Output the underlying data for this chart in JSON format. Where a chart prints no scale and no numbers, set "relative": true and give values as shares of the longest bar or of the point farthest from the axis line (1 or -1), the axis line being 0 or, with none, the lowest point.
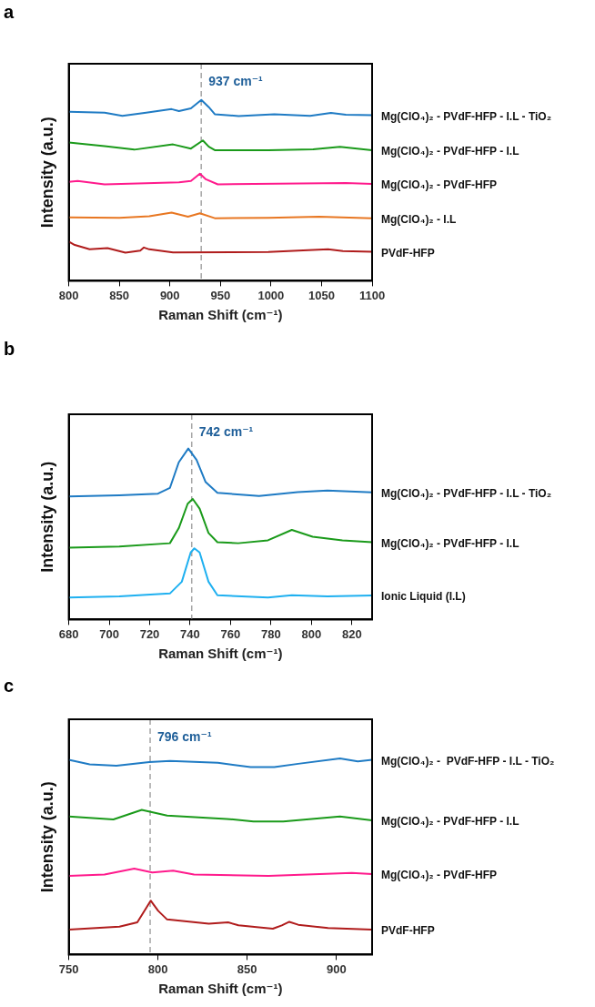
{
  "chart_data": [
    {
      "type": "line",
      "title": "a",
      "xlabel": "Raman Shift (cm⁻¹)",
      "ylabel": "Intensity (a.u.)",
      "relative": true,
      "grid": false,
      "legend": false,
      "marker": "none",
      "xlim": [
        800,
        1100
      ],
      "xticks": [
        800,
        850,
        900,
        950,
        1000,
        1050,
        1100
      ],
      "ref_lines": [
        {
          "axis": "x",
          "value": 931,
          "label": "937 cm⁻¹",
          "color": "#a6a6a6",
          "line_style": "dashed"
        }
      ],
      "series": [
        {
          "name": "Mg(ClO₄)₂ - PVdF-HFP - I.L - TiO₂",
          "color": "#1f7bc4",
          "x": [
            800,
            835.4,
            853,
            876.6,
            901.7,
            909,
            920.8,
            931.1,
            938.5,
            944.4,
            968,
            1003.3,
            1038.7,
            1059.3,
            1074,
            1100
          ],
          "values": [
            0.935,
            0.929,
            0.912,
            0.929,
            0.949,
            0.938,
            0.953,
            1.0,
            0.96,
            0.921,
            0.911,
            0.921,
            0.912,
            0.928,
            0.918,
            0.916
          ]
        },
        {
          "name": "Mg(ClO₄)₂ - PVdF-HFP - I.L",
          "color": "#1a9a1a",
          "x": [
            800,
            835.4,
            864.8,
            903.1,
            920.8,
            932.6,
            938.5,
            944.4,
            997.4,
            1041.6,
            1068.2,
            1100
          ],
          "values": [
            0.765,
            0.744,
            0.725,
            0.754,
            0.731,
            0.776,
            0.741,
            0.722,
            0.722,
            0.727,
            0.741,
            0.722
          ]
        },
        {
          "name": "Mg(ClO₄)₂ - PVdF-HFP",
          "color": "#ff1a8c",
          "x": [
            800,
            808.8,
            835.4,
            909,
            920.8,
            929.7,
            935.6,
            947.4,
            1074,
            1100
          ],
          "values": [
            0.547,
            0.552,
            0.533,
            0.544,
            0.552,
            0.592,
            0.561,
            0.533,
            0.541,
            0.535
          ]
        },
        {
          "name": "Mg(ClO₄)₂ - I.L",
          "color": "#e87722",
          "x": [
            800,
            850.1,
            879.6,
            901.7,
            917.9,
            929.7,
            944.4,
            997.4,
            1047.5,
            1100
          ],
          "values": [
            0.351,
            0.348,
            0.357,
            0.377,
            0.354,
            0.373,
            0.346,
            0.348,
            0.354,
            0.346
          ]
        },
        {
          "name": "PVdF-HFP",
          "color": "#b01c1c",
          "x": [
            800,
            805.9,
            820.6,
            838.3,
            856,
            870.7,
            874.3,
            879.6,
            903.1,
            997.4,
            1056.4,
            1071.1,
            1100
          ],
          "values": [
            0.217,
            0.198,
            0.174,
            0.181,
            0.156,
            0.167,
            0.184,
            0.174,
            0.157,
            0.159,
            0.174,
            0.164,
            0.16
          ]
        }
      ]
    },
    {
      "type": "line",
      "title": "b",
      "xlabel": "Raman Shift (cm⁻¹)",
      "ylabel": "Intensity (a.u.)",
      "relative": true,
      "grid": false,
      "legend": false,
      "marker": "none",
      "xlim": [
        680,
        830
      ],
      "xticks": [
        680,
        700,
        720,
        740,
        760,
        780,
        800,
        820
      ],
      "ref_lines": [
        {
          "axis": "x",
          "value": 740.8,
          "label": "742 cm⁻¹",
          "color": "#a6a6a6",
          "line_style": "dashed"
        }
      ],
      "series": [
        {
          "name": "Mg(ClO₄)₂ - PVdF-HFP - I.L - TiO₂",
          "color": "#1f7bc4",
          "x": [
            680,
            705,
            724.1,
            730,
            734.4,
            739.1,
            743.2,
            747.6,
            753.5,
            774.1,
            793.2,
            807.9,
            830
          ],
          "values": [
            0.719,
            0.726,
            0.736,
            0.769,
            0.919,
            1.0,
            0.933,
            0.805,
            0.741,
            0.722,
            0.745,
            0.754,
            0.744
          ]
        },
        {
          "name": "Mg(ClO₄)₂ - PVdF-HFP - I.L",
          "color": "#1a9a1a",
          "x": [
            680,
            705,
            730,
            734.4,
            738.8,
            741.3,
            744.7,
            749.1,
            753.5,
            763.8,
            778.5,
            790.3,
            800.6,
            815.3,
            830
          ],
          "values": [
            0.42,
            0.427,
            0.446,
            0.534,
            0.677,
            0.705,
            0.648,
            0.506,
            0.452,
            0.446,
            0.463,
            0.524,
            0.484,
            0.463,
            0.452
          ]
        },
        {
          "name": "Ionic Liquid (I.L)",
          "color": "#1fb0f0",
          "x": [
            680,
            705,
            730,
            735.9,
            740.3,
            742.1,
            744.7,
            749.1,
            753.5,
            778.5,
            790.3,
            807.9,
            830
          ],
          "values": [
            0.128,
            0.135,
            0.152,
            0.221,
            0.392,
            0.416,
            0.392,
            0.221,
            0.142,
            0.128,
            0.142,
            0.135,
            0.14
          ]
        }
      ]
    },
    {
      "type": "line",
      "title": "c",
      "xlabel": "Raman Shift (cm⁻¹)",
      "ylabel": "Intensity (a.u.)",
      "relative": true,
      "grid": false,
      "legend": false,
      "marker": "none",
      "xlim": [
        750,
        920
      ],
      "xticks": [
        750,
        800,
        850,
        900
      ],
      "ref_lines": [
        {
          "axis": "x",
          "value": 795.6,
          "label": "796 cm⁻¹",
          "color": "#a6a6a6",
          "line_style": "dashed"
        }
      ],
      "series": [
        {
          "name": "Mg(ClO₄)₂ -  PVdF-HFP - I.L - TiO₂",
          "color": "#1f7bc4",
          "x": [
            750,
            761.7,
            776.7,
            795.1,
            806.8,
            833.5,
            851.9,
            865.2,
            878.6,
            902,
            912,
            920
          ],
          "values": [
            0.993,
            0.97,
            0.963,
            0.982,
            0.988,
            0.978,
            0.956,
            0.956,
            0.973,
            1.0,
            0.985,
            0.993
          ]
        },
        {
          "name": "Mg(ClO₄)₂ - PVdF-HFP - I.L",
          "color": "#1a9a1a",
          "x": [
            750,
            775,
            790.9,
            805.1,
            838.5,
            853.5,
            870.2,
            902,
            920
          ],
          "values": [
            0.704,
            0.689,
            0.738,
            0.709,
            0.692,
            0.679,
            0.679,
            0.704,
            0.685
          ]
        },
        {
          "name": "Mg(ClO₄)₂ - PVdF-HFP",
          "color": "#ff1a8c",
          "x": [
            750,
            770,
            786.7,
            796.8,
            808.5,
            820.2,
            861.9,
            908.6,
            920
          ],
          "values": [
            0.401,
            0.408,
            0.438,
            0.419,
            0.428,
            0.408,
            0.401,
            0.416,
            0.411
          ]
        },
        {
          "name": "PVdF-HFP",
          "color": "#b01c1c",
          "x": [
            750,
            778.4,
            788.4,
            793.4,
            795.9,
            800.1,
            805.1,
            828.5,
            839.3,
            845.1,
            864.4,
            869.4,
            873.6,
            878.6,
            895.3,
            920
          ],
          "values": [
            0.127,
            0.142,
            0.164,
            0.238,
            0.275,
            0.223,
            0.179,
            0.157,
            0.164,
            0.149,
            0.132,
            0.149,
            0.167,
            0.152,
            0.135,
            0.127
          ]
        }
      ]
    }
  ]
}
